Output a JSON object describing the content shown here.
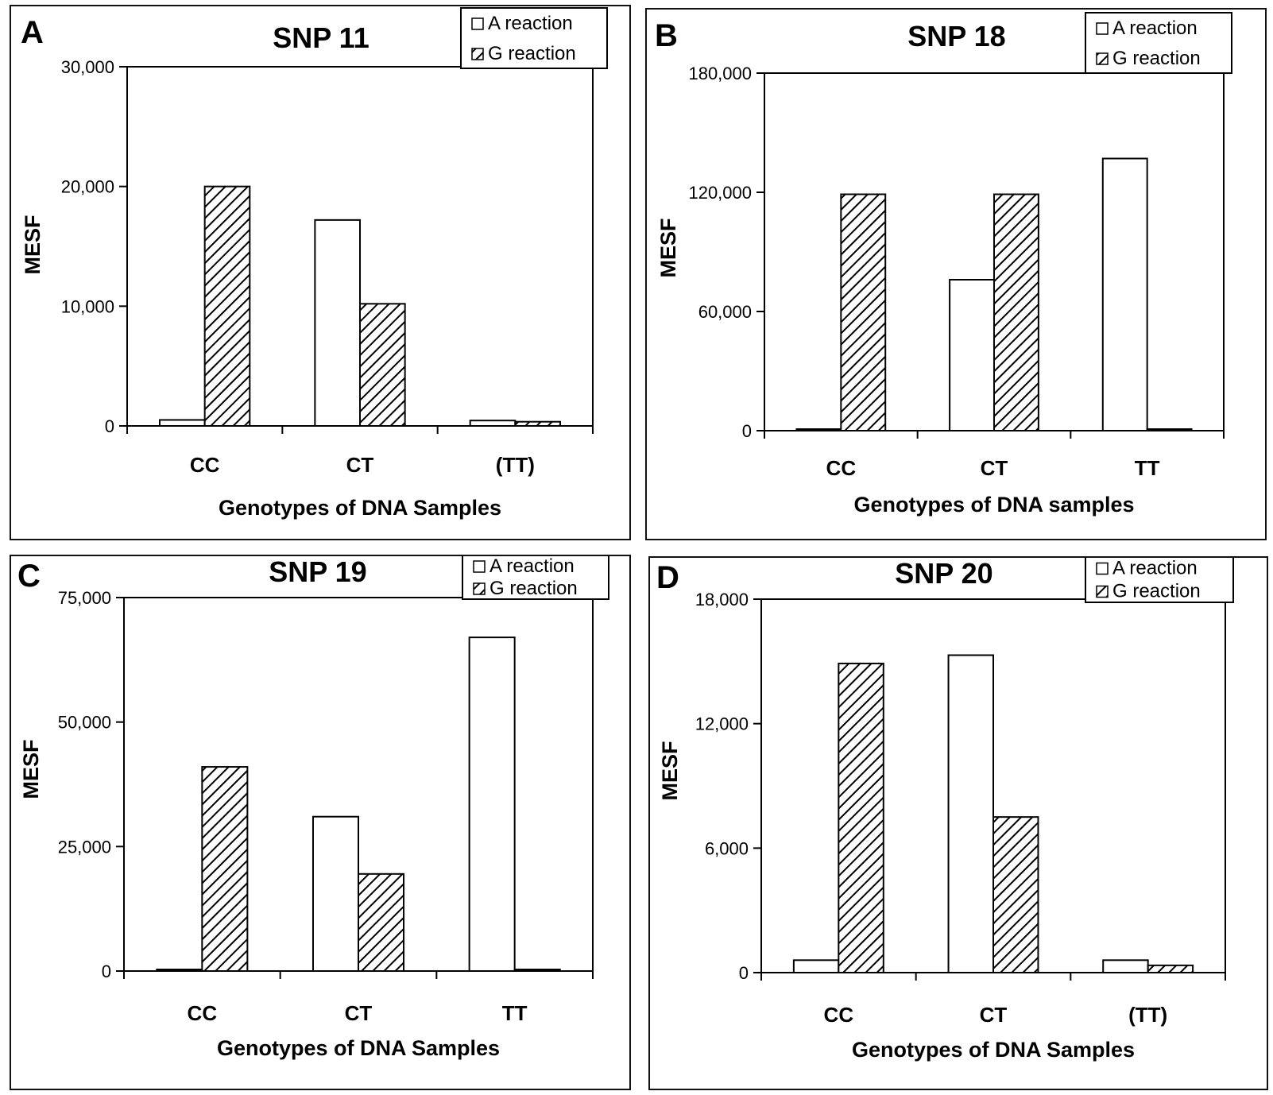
{
  "legend": {
    "a_reaction": "A reaction",
    "g_reaction": "G reaction"
  },
  "colors": {
    "a_fill": "#ffffff",
    "g_hatch": "#000000",
    "stroke": "#000000"
  },
  "chart_data": [
    {
      "panel": "A",
      "type": "bar",
      "title": "SNP 11",
      "xlabel": "Genotypes of DNA Samples",
      "ylabel": "MESF",
      "categories": [
        "CC",
        "CT",
        "(TT)"
      ],
      "ylim": [
        0,
        30000
      ],
      "yticks": [
        0,
        10000,
        20000,
        30000
      ],
      "ytick_labels": [
        "0",
        "10,000",
        "20,000",
        "30,000"
      ],
      "legend_position": "top-right",
      "series": [
        {
          "name": "A reaction",
          "values": [
            500,
            17200,
            450
          ]
        },
        {
          "name": "G reaction",
          "values": [
            20000,
            10200,
            350
          ]
        }
      ]
    },
    {
      "panel": "B",
      "type": "bar",
      "title": "SNP 18",
      "xlabel": "Genotypes of DNA samples",
      "ylabel": "MESF",
      "categories": [
        "CC",
        "CT",
        "TT"
      ],
      "ylim": [
        0,
        180000
      ],
      "yticks": [
        0,
        60000,
        120000,
        180000
      ],
      "ytick_labels": [
        "0",
        "60,000",
        "120,000",
        "180,000"
      ],
      "legend_position": "top-right",
      "series": [
        {
          "name": "A reaction",
          "values": [
            500,
            76000,
            137000
          ]
        },
        {
          "name": "G reaction",
          "values": [
            119000,
            119000,
            500
          ]
        }
      ]
    },
    {
      "panel": "C",
      "type": "bar",
      "title": "SNP 19",
      "xlabel": "Genotypes of DNA Samples",
      "ylabel": "MESF",
      "categories": [
        "CC",
        "CT",
        "TT"
      ],
      "ylim": [
        0,
        75000
      ],
      "yticks": [
        0,
        25000,
        50000,
        75000
      ],
      "ytick_labels": [
        "0",
        "25,000",
        "50,000",
        "75,000"
      ],
      "legend_position": "top-right",
      "series": [
        {
          "name": "A reaction",
          "values": [
            200,
            31000,
            67000
          ]
        },
        {
          "name": "G reaction",
          "values": [
            41000,
            19500,
            200
          ]
        }
      ]
    },
    {
      "panel": "D",
      "type": "bar",
      "title": "SNP 20",
      "xlabel": "Genotypes of DNA Samples",
      "ylabel": "MESF",
      "categories": [
        "CC",
        "CT",
        "(TT)"
      ],
      "ylim": [
        0,
        18000
      ],
      "yticks": [
        0,
        6000,
        12000,
        18000
      ],
      "ytick_labels": [
        "0",
        "6,000",
        "12,000",
        "18,000"
      ],
      "legend_position": "top-right",
      "series": [
        {
          "name": "A reaction",
          "values": [
            600,
            15300,
            600
          ]
        },
        {
          "name": "G reaction",
          "values": [
            14900,
            7500,
            350
          ]
        }
      ]
    }
  ]
}
